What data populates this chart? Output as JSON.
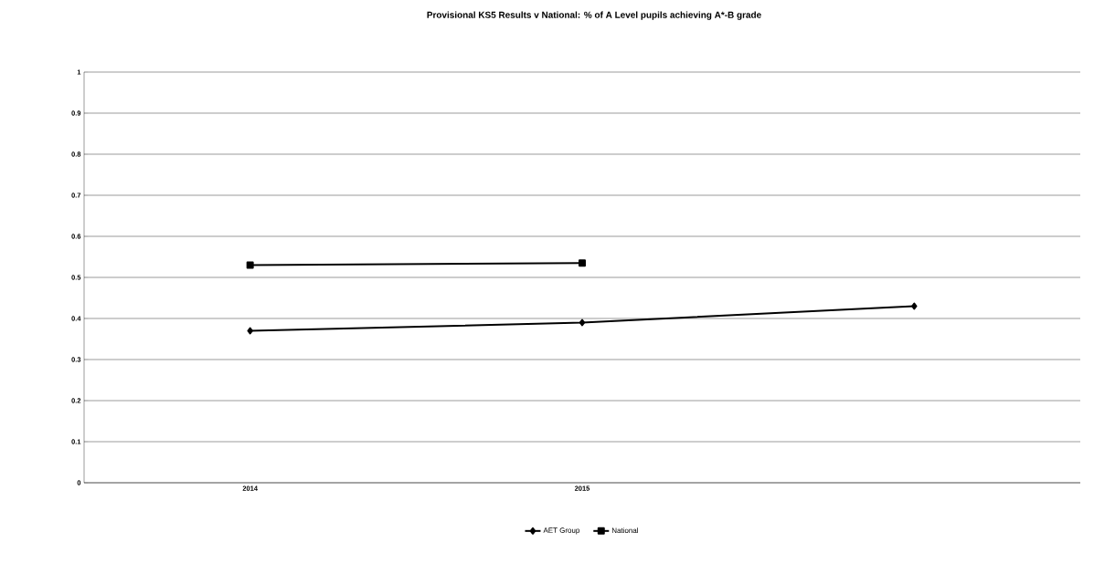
{
  "chart_data": {
    "type": "line",
    "title": "Provisional KS5 Results v National: % of A Level pupils achieving A*-B grade",
    "categories": [
      "2014",
      "2015",
      null
    ],
    "series": [
      {
        "name": "AET Group",
        "color": "#000000",
        "marker": "diamond",
        "values": [
          0.37,
          0.39,
          0.43
        ]
      },
      {
        "name": "National",
        "color": "#000000",
        "marker": "square",
        "values": [
          0.53,
          0.535,
          null
        ]
      }
    ],
    "ylim": [
      0,
      1
    ],
    "yticks": [
      0,
      0.1,
      0.2,
      0.3,
      0.4,
      0.5,
      0.6,
      0.7,
      0.8,
      0.9,
      1
    ],
    "grid": "y",
    "legend": "bottom",
    "line_style": "solid"
  }
}
